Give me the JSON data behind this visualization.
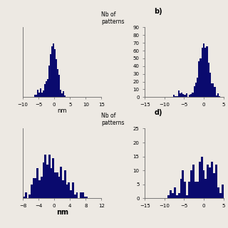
{
  "background_color": "#ede9e3",
  "bar_color": "#0a0a6e",
  "fig_width": 3.2,
  "fig_height": 3.2,
  "dpi": 100,
  "subplot_a": {
    "xlim": [
      -10,
      15
    ],
    "xticks": [
      -10,
      -5,
      0,
      5,
      10,
      15
    ],
    "ylim": [
      0,
      130
    ],
    "yticks": [],
    "xlabel": "nm",
    "xlabel_bold": false,
    "bins": 55,
    "mean": -0.3,
    "std1": 1.4,
    "n1": 700,
    "mean2": -4.0,
    "std2": 1.2,
    "n2": 80,
    "seed": 10
  },
  "subplot_b": {
    "xlim": [
      -15,
      5
    ],
    "xticks": [
      -15,
      -10,
      -5,
      0,
      5
    ],
    "ylim": [
      0,
      90
    ],
    "yticks": [
      0,
      10,
      20,
      30,
      40,
      50,
      60,
      70,
      80,
      90
    ],
    "label": "b)",
    "bins": 50,
    "mean": 0.2,
    "std1": 1.3,
    "n1": 550,
    "mean2": -5.0,
    "std2": 1.5,
    "n2": 50,
    "seed": 77
  },
  "subplot_c": {
    "xlim": [
      -8,
      12
    ],
    "xticks": [
      -8,
      -4,
      0,
      4,
      8,
      12
    ],
    "ylim": [
      0,
      35
    ],
    "yticks": [],
    "xlabel": "nm",
    "xlabel_bold": true,
    "bins": 40,
    "mean": 0.0,
    "std1": 3.2,
    "n1": 250,
    "mean2": -4.0,
    "std2": 1.5,
    "n2": 50,
    "seed": 5
  },
  "subplot_d": {
    "xlim": [
      -15,
      5
    ],
    "xticks": [
      -15,
      -10,
      -5,
      0,
      5
    ],
    "ylim": [
      0,
      25
    ],
    "yticks": [
      0,
      5,
      10,
      15,
      20,
      25
    ],
    "label": "d)",
    "bins": 38,
    "mean": 0.3,
    "std1": 2.8,
    "n1": 170,
    "mean2": -6.0,
    "std2": 1.5,
    "n2": 30,
    "seed": 21
  },
  "nb_of_patterns_label": "Nb of\npatterns",
  "tick_fontsize": 5,
  "label_fontsize": 6
}
